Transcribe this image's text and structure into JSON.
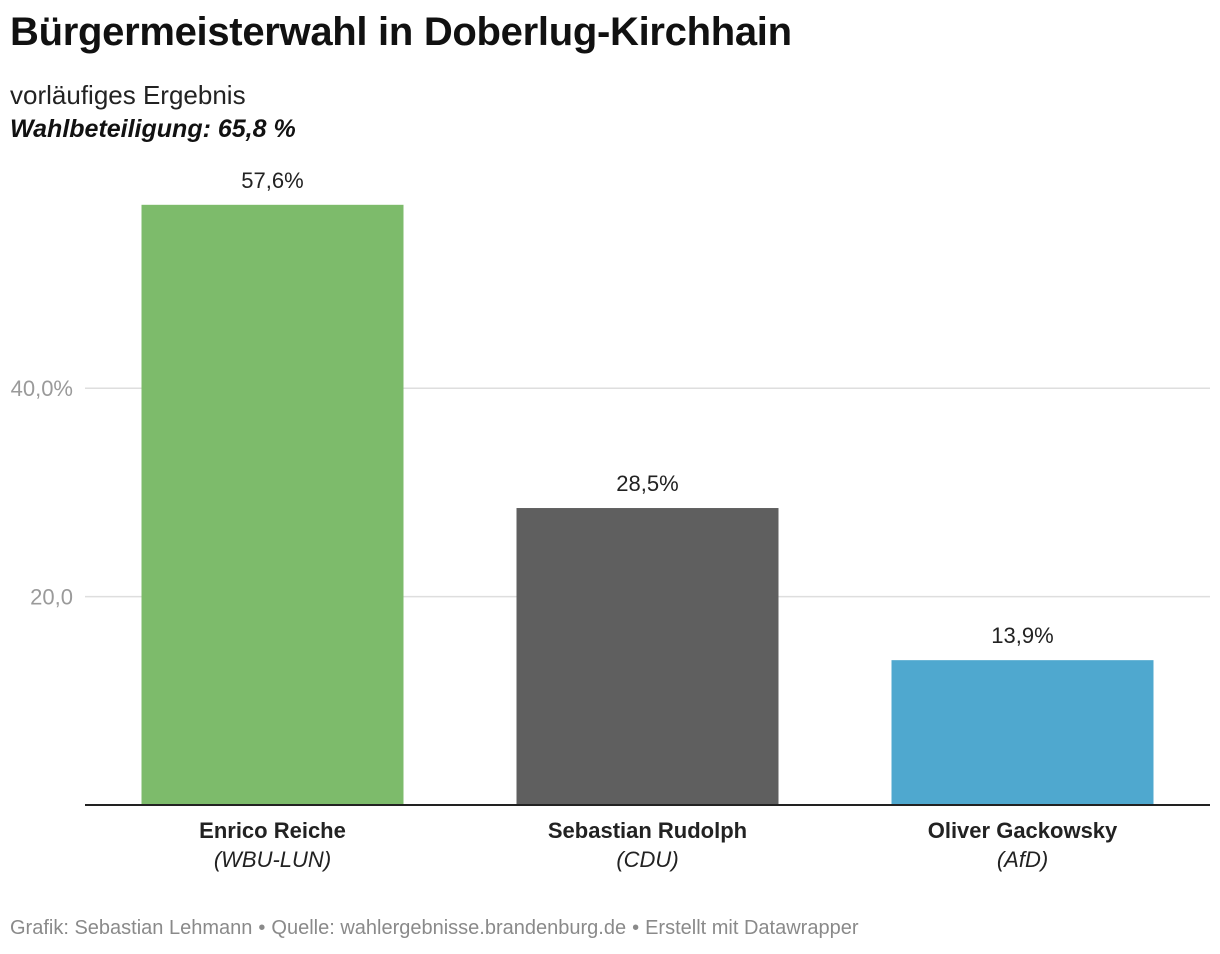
{
  "header": {
    "title": "Bürgermeisterwahl in Doberlug-Kirchhain",
    "subtitle": "vorläufiges Ergebnis",
    "turnout": "Wahlbeteiligung: 65,8 %"
  },
  "footer": {
    "credit": "Grafik: Sebastian Lehmann",
    "source": "Quelle: wahlergebnisse.brandenburg.de",
    "tool": "Erstellt mit Datawrapper",
    "separator": "•"
  },
  "chart_data": {
    "type": "bar",
    "title": "Bürgermeisterwahl in Doberlug-Kirchhain",
    "subtitle": "vorläufiges Ergebnis",
    "xlabel": "",
    "ylabel": "",
    "ylim": [
      0,
      60
    ],
    "yticks": [
      {
        "value": 20,
        "label": "20,0"
      },
      {
        "value": 40,
        "label": "40,0%"
      }
    ],
    "grid": true,
    "legend": "none",
    "categories": [
      "Enrico Reiche",
      "Sebastian Rudolph",
      "Oliver Gackowsky"
    ],
    "parties": [
      "(WBU-LUN)",
      "(CDU)",
      "(AfD)"
    ],
    "values": [
      57.6,
      28.5,
      13.9
    ],
    "value_labels": [
      "57,6%",
      "28,5%",
      "13,9%"
    ],
    "colors": [
      "#7dbb6b",
      "#5f5f5f",
      "#4fa8cf"
    ]
  }
}
